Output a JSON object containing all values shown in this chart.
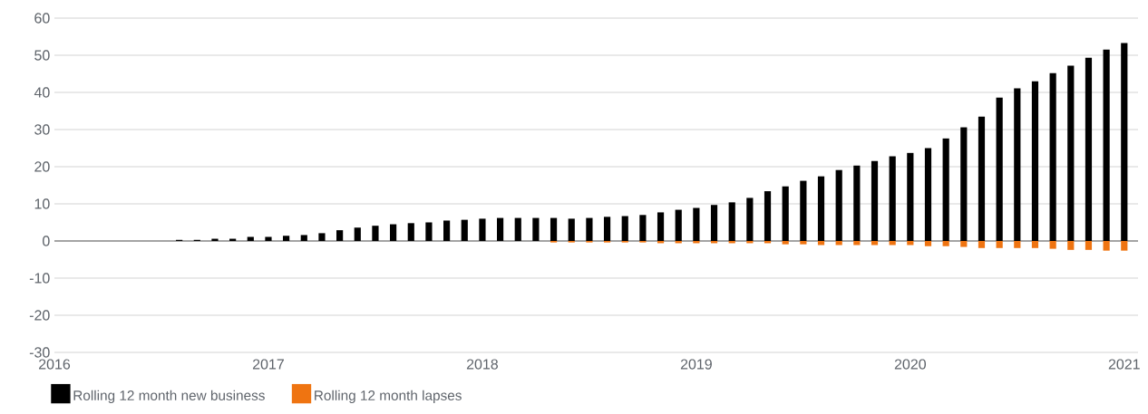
{
  "chart_data": {
    "type": "bar",
    "stacked": true,
    "grid": "y",
    "legend": "bottom left",
    "x": [
      "2016-01",
      "2016-02",
      "2016-03",
      "2016-04",
      "2016-05",
      "2016-06",
      "2016-07",
      "2016-08",
      "2016-09",
      "2016-10",
      "2016-11",
      "2016-12",
      "2017-01",
      "2017-02",
      "2017-03",
      "2017-04",
      "2017-05",
      "2017-06",
      "2017-07",
      "2017-08",
      "2017-09",
      "2017-10",
      "2017-11",
      "2017-12",
      "2018-01",
      "2018-02",
      "2018-03",
      "2018-04",
      "2018-05",
      "2018-06",
      "2018-07",
      "2018-08",
      "2018-09",
      "2018-10",
      "2018-11",
      "2018-12",
      "2019-01",
      "2019-02",
      "2019-03",
      "2019-04",
      "2019-05",
      "2019-06",
      "2019-07",
      "2019-08",
      "2019-09",
      "2019-10",
      "2019-11",
      "2019-12",
      "2020-01",
      "2020-02",
      "2020-03",
      "2020-04",
      "2020-05",
      "2020-06",
      "2020-07",
      "2020-08",
      "2020-09",
      "2020-10",
      "2020-11",
      "2020-12",
      "2021-01"
    ],
    "series": [
      {
        "name": "Rolling 12 month new business",
        "color": "#000000",
        "values": [
          0,
          0,
          0,
          0,
          0,
          0,
          0,
          0.3,
          0.3,
          0.6,
          0.6,
          1.1,
          1.1,
          1.4,
          1.6,
          2.1,
          2.9,
          3.6,
          4.1,
          4.5,
          4.8,
          5.0,
          5.5,
          5.7,
          6.0,
          6.2,
          6.2,
          6.2,
          6.2,
          6.0,
          6.2,
          6.5,
          6.7,
          7.0,
          7.7,
          8.4,
          8.9,
          9.7,
          10.4,
          11.6,
          13.4,
          14.7,
          16.2,
          17.4,
          19.1,
          20.3,
          21.5,
          22.8,
          23.7,
          25.0,
          27.6,
          30.6,
          33.5,
          38.6,
          41.1,
          43.0,
          45.2,
          47.2,
          49.3,
          51.5,
          53.3
        ]
      },
      {
        "name": "Rolling 12 month lapses",
        "color": "#ef7411",
        "values": [
          0,
          0,
          0,
          0,
          0,
          0,
          0,
          0,
          0,
          0,
          0,
          0,
          0,
          0,
          0,
          0,
          0,
          0,
          0,
          0,
          0,
          0,
          0,
          0,
          0,
          0,
          0,
          0,
          -0.4,
          -0.4,
          -0.4,
          -0.4,
          -0.4,
          -0.4,
          -0.6,
          -0.6,
          -0.6,
          -0.6,
          -0.6,
          -0.6,
          -0.6,
          -0.9,
          -0.9,
          -1.1,
          -1.1,
          -1.1,
          -1.1,
          -1.1,
          -1.1,
          -1.4,
          -1.4,
          -1.6,
          -1.9,
          -1.9,
          -1.9,
          -1.9,
          -2.1,
          -2.4,
          -2.4,
          -2.6,
          -2.6
        ]
      }
    ],
    "xlim": [
      "2016-01-01",
      "2021-01-25"
    ],
    "xticks": [
      "2016",
      "2017",
      "2018",
      "2019",
      "2020",
      "2021"
    ],
    "ylim": [
      -30,
      60
    ],
    "yticks": [
      -30,
      -20,
      -10,
      0,
      10,
      20,
      30,
      40,
      50,
      60
    ]
  }
}
